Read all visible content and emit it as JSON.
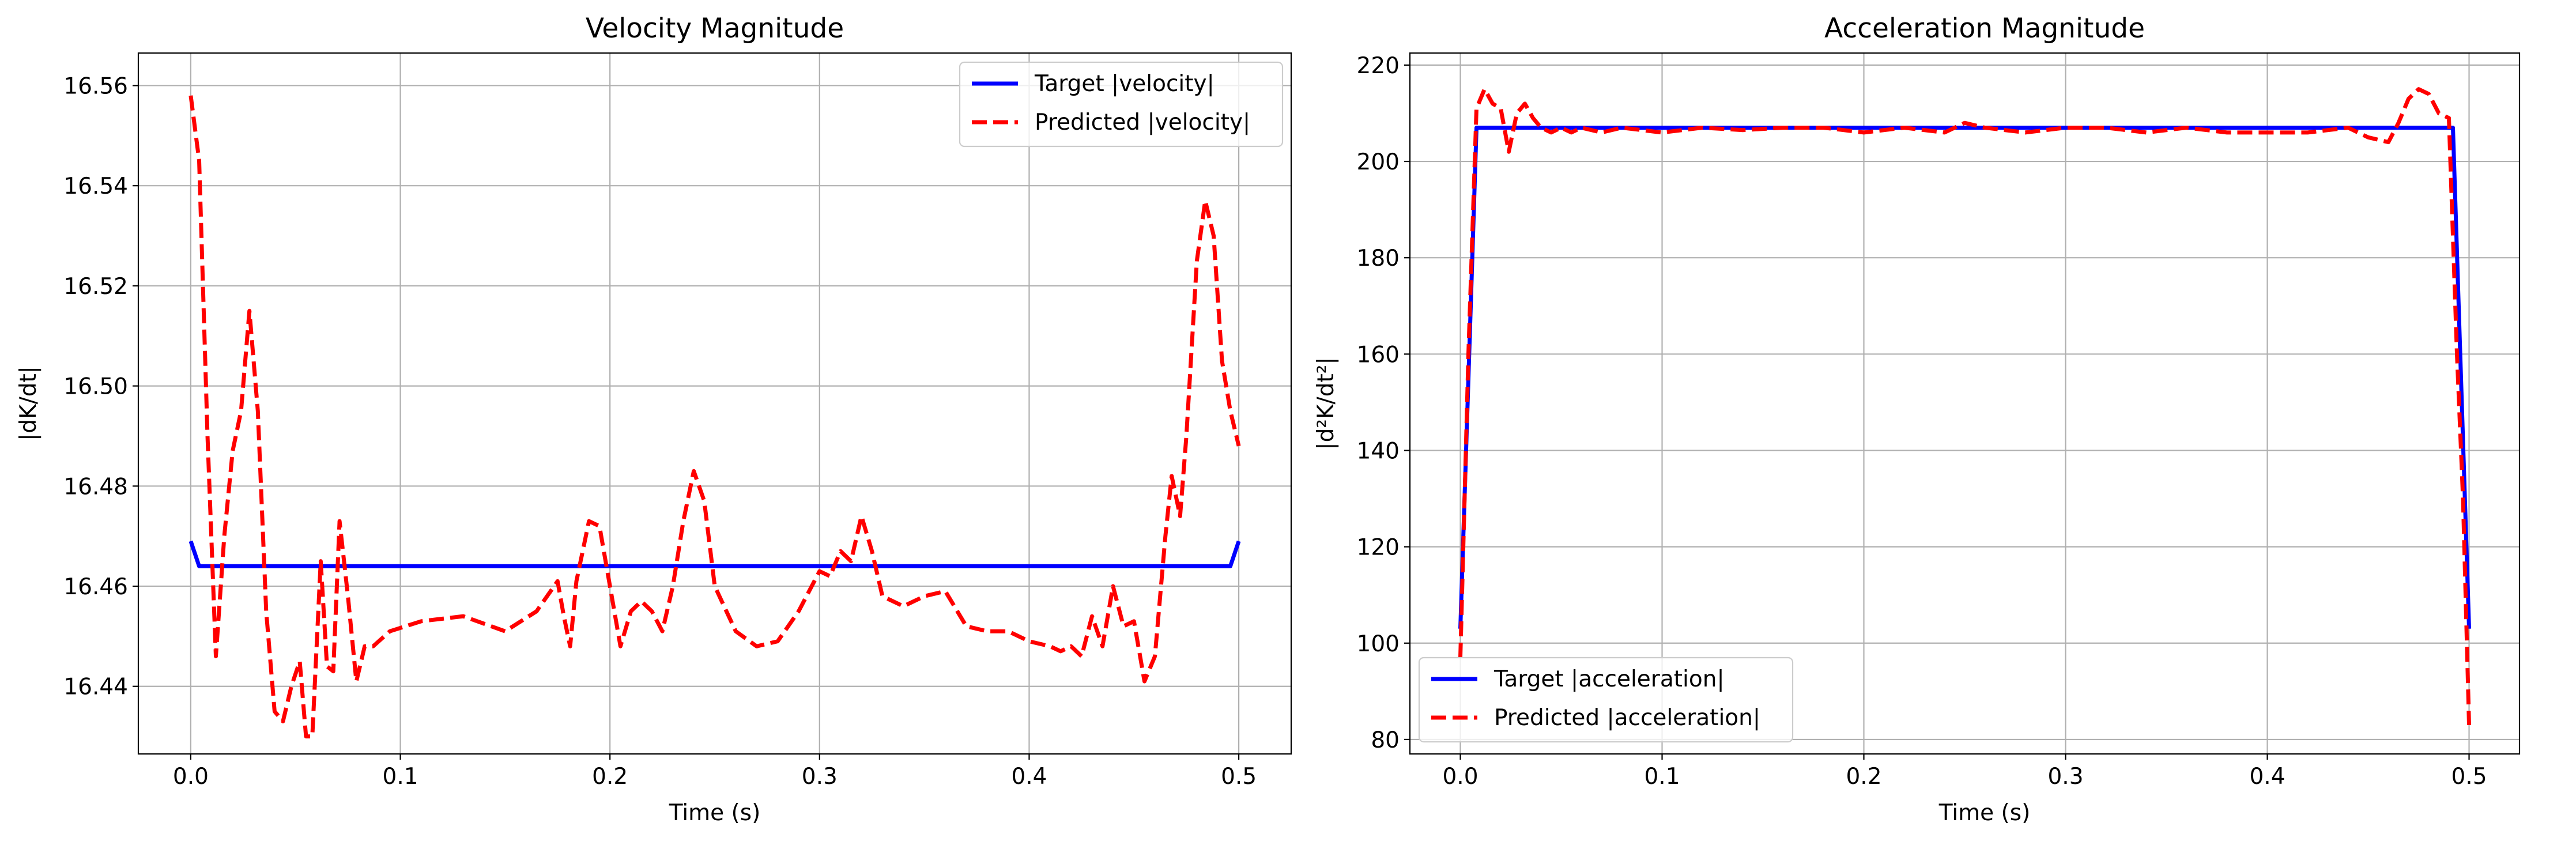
{
  "chart_data": [
    {
      "type": "line",
      "title": "Velocity Magnitude",
      "xlabel": "Time (s)",
      "ylabel": "|dK/dt|",
      "xlim": [
        -0.025,
        0.525
      ],
      "ylim": [
        16.4265,
        16.5665
      ],
      "xticks": [
        0.0,
        0.1,
        0.2,
        0.3,
        0.4,
        0.5
      ],
      "xtick_labels": [
        "0.0",
        "0.1",
        "0.2",
        "0.3",
        "0.4",
        "0.5"
      ],
      "yticks": [
        16.44,
        16.46,
        16.48,
        16.5,
        16.52,
        16.54,
        16.56
      ],
      "ytick_labels": [
        "16.44",
        "16.46",
        "16.48",
        "16.50",
        "16.52",
        "16.54",
        "16.56"
      ],
      "grid": true,
      "legend": "top-right",
      "series": [
        {
          "name": "Target |velocity|",
          "color": "#0000ff",
          "style": "solid",
          "x": [
            0.0,
            0.004,
            0.1,
            0.2,
            0.3,
            0.4,
            0.496,
            0.5
          ],
          "y": [
            16.469,
            16.464,
            16.464,
            16.464,
            16.464,
            16.464,
            16.464,
            16.469
          ]
        },
        {
          "name": "Predicted |velocity|",
          "color": "#ff0000",
          "style": "dashed",
          "x": [
            0.0,
            0.004,
            0.008,
            0.012,
            0.016,
            0.02,
            0.024,
            0.028,
            0.032,
            0.036,
            0.04,
            0.044,
            0.048,
            0.052,
            0.055,
            0.058,
            0.062,
            0.065,
            0.068,
            0.071,
            0.075,
            0.079,
            0.083,
            0.087,
            0.095,
            0.11,
            0.13,
            0.15,
            0.165,
            0.175,
            0.178,
            0.181,
            0.184,
            0.19,
            0.195,
            0.2,
            0.205,
            0.21,
            0.215,
            0.22,
            0.225,
            0.23,
            0.235,
            0.24,
            0.245,
            0.25,
            0.26,
            0.27,
            0.28,
            0.29,
            0.3,
            0.305,
            0.31,
            0.315,
            0.32,
            0.325,
            0.33,
            0.34,
            0.35,
            0.36,
            0.37,
            0.38,
            0.39,
            0.4,
            0.41,
            0.415,
            0.42,
            0.425,
            0.43,
            0.435,
            0.44,
            0.445,
            0.45,
            0.455,
            0.46,
            0.465,
            0.468,
            0.472,
            0.475,
            0.48,
            0.484,
            0.488,
            0.492,
            0.496,
            0.5
          ],
          "y": [
            16.558,
            16.545,
            16.49,
            16.446,
            16.47,
            16.487,
            16.495,
            16.515,
            16.495,
            16.455,
            16.435,
            16.433,
            16.44,
            16.445,
            16.43,
            16.43,
            16.465,
            16.444,
            16.443,
            16.473,
            16.458,
            16.441,
            16.448,
            16.448,
            16.451,
            16.453,
            16.454,
            16.451,
            16.455,
            16.461,
            16.454,
            16.448,
            16.461,
            16.473,
            16.472,
            16.46,
            16.448,
            16.455,
            16.457,
            16.455,
            16.451,
            16.46,
            16.473,
            16.483,
            16.477,
            16.46,
            16.451,
            16.448,
            16.449,
            16.455,
            16.463,
            16.462,
            16.467,
            16.465,
            16.474,
            16.467,
            16.458,
            16.456,
            16.458,
            16.459,
            16.452,
            16.451,
            16.451,
            16.449,
            16.448,
            16.447,
            16.448,
            16.446,
            16.454,
            16.448,
            16.46,
            16.452,
            16.453,
            16.441,
            16.446,
            16.47,
            16.482,
            16.474,
            16.49,
            16.525,
            16.537,
            16.53,
            16.505,
            16.495,
            16.488
          ]
        }
      ]
    },
    {
      "type": "line",
      "title": "Acceleration Magnitude",
      "xlabel": "Time (s)",
      "ylabel": "|d²K/dt²|",
      "xlim": [
        -0.025,
        0.525
      ],
      "ylim": [
        77.0,
        222.5
      ],
      "xticks": [
        0.0,
        0.1,
        0.2,
        0.3,
        0.4,
        0.5
      ],
      "xtick_labels": [
        "0.0",
        "0.1",
        "0.2",
        "0.3",
        "0.4",
        "0.5"
      ],
      "yticks": [
        80,
        100,
        120,
        140,
        160,
        180,
        200,
        220
      ],
      "ytick_labels": [
        "80",
        "100",
        "120",
        "140",
        "160",
        "180",
        "200",
        "220"
      ],
      "grid": true,
      "legend": "bottom-left",
      "series": [
        {
          "name": "Target |acceleration|",
          "color": "#0000ff",
          "style": "solid",
          "x": [
            0.0,
            0.008,
            0.1,
            0.2,
            0.3,
            0.4,
            0.492,
            0.5
          ],
          "y": [
            103,
            207,
            207,
            207,
            207,
            207,
            207,
            103
          ]
        },
        {
          "name": "Predicted |acceleration|",
          "color": "#ff0000",
          "style": "dashed",
          "x": [
            0.0,
            0.004,
            0.008,
            0.012,
            0.016,
            0.02,
            0.024,
            0.028,
            0.032,
            0.036,
            0.04,
            0.045,
            0.05,
            0.055,
            0.06,
            0.07,
            0.08,
            0.1,
            0.12,
            0.14,
            0.16,
            0.18,
            0.2,
            0.22,
            0.24,
            0.25,
            0.26,
            0.28,
            0.3,
            0.32,
            0.34,
            0.36,
            0.38,
            0.4,
            0.42,
            0.44,
            0.45,
            0.46,
            0.465,
            0.47,
            0.475,
            0.48,
            0.485,
            0.49,
            0.494,
            0.497,
            0.5
          ],
          "y": [
            97,
            160,
            211,
            215,
            212,
            211,
            202,
            210,
            212,
            209,
            207,
            206,
            207,
            206,
            207,
            206,
            207,
            206,
            207,
            206.5,
            207,
            207,
            206,
            207,
            206,
            208,
            207,
            206,
            207,
            207,
            206,
            207,
            206,
            206,
            206,
            207,
            205,
            204,
            208,
            213,
            215,
            214,
            210,
            209,
            160,
            130,
            83
          ]
        }
      ]
    }
  ]
}
